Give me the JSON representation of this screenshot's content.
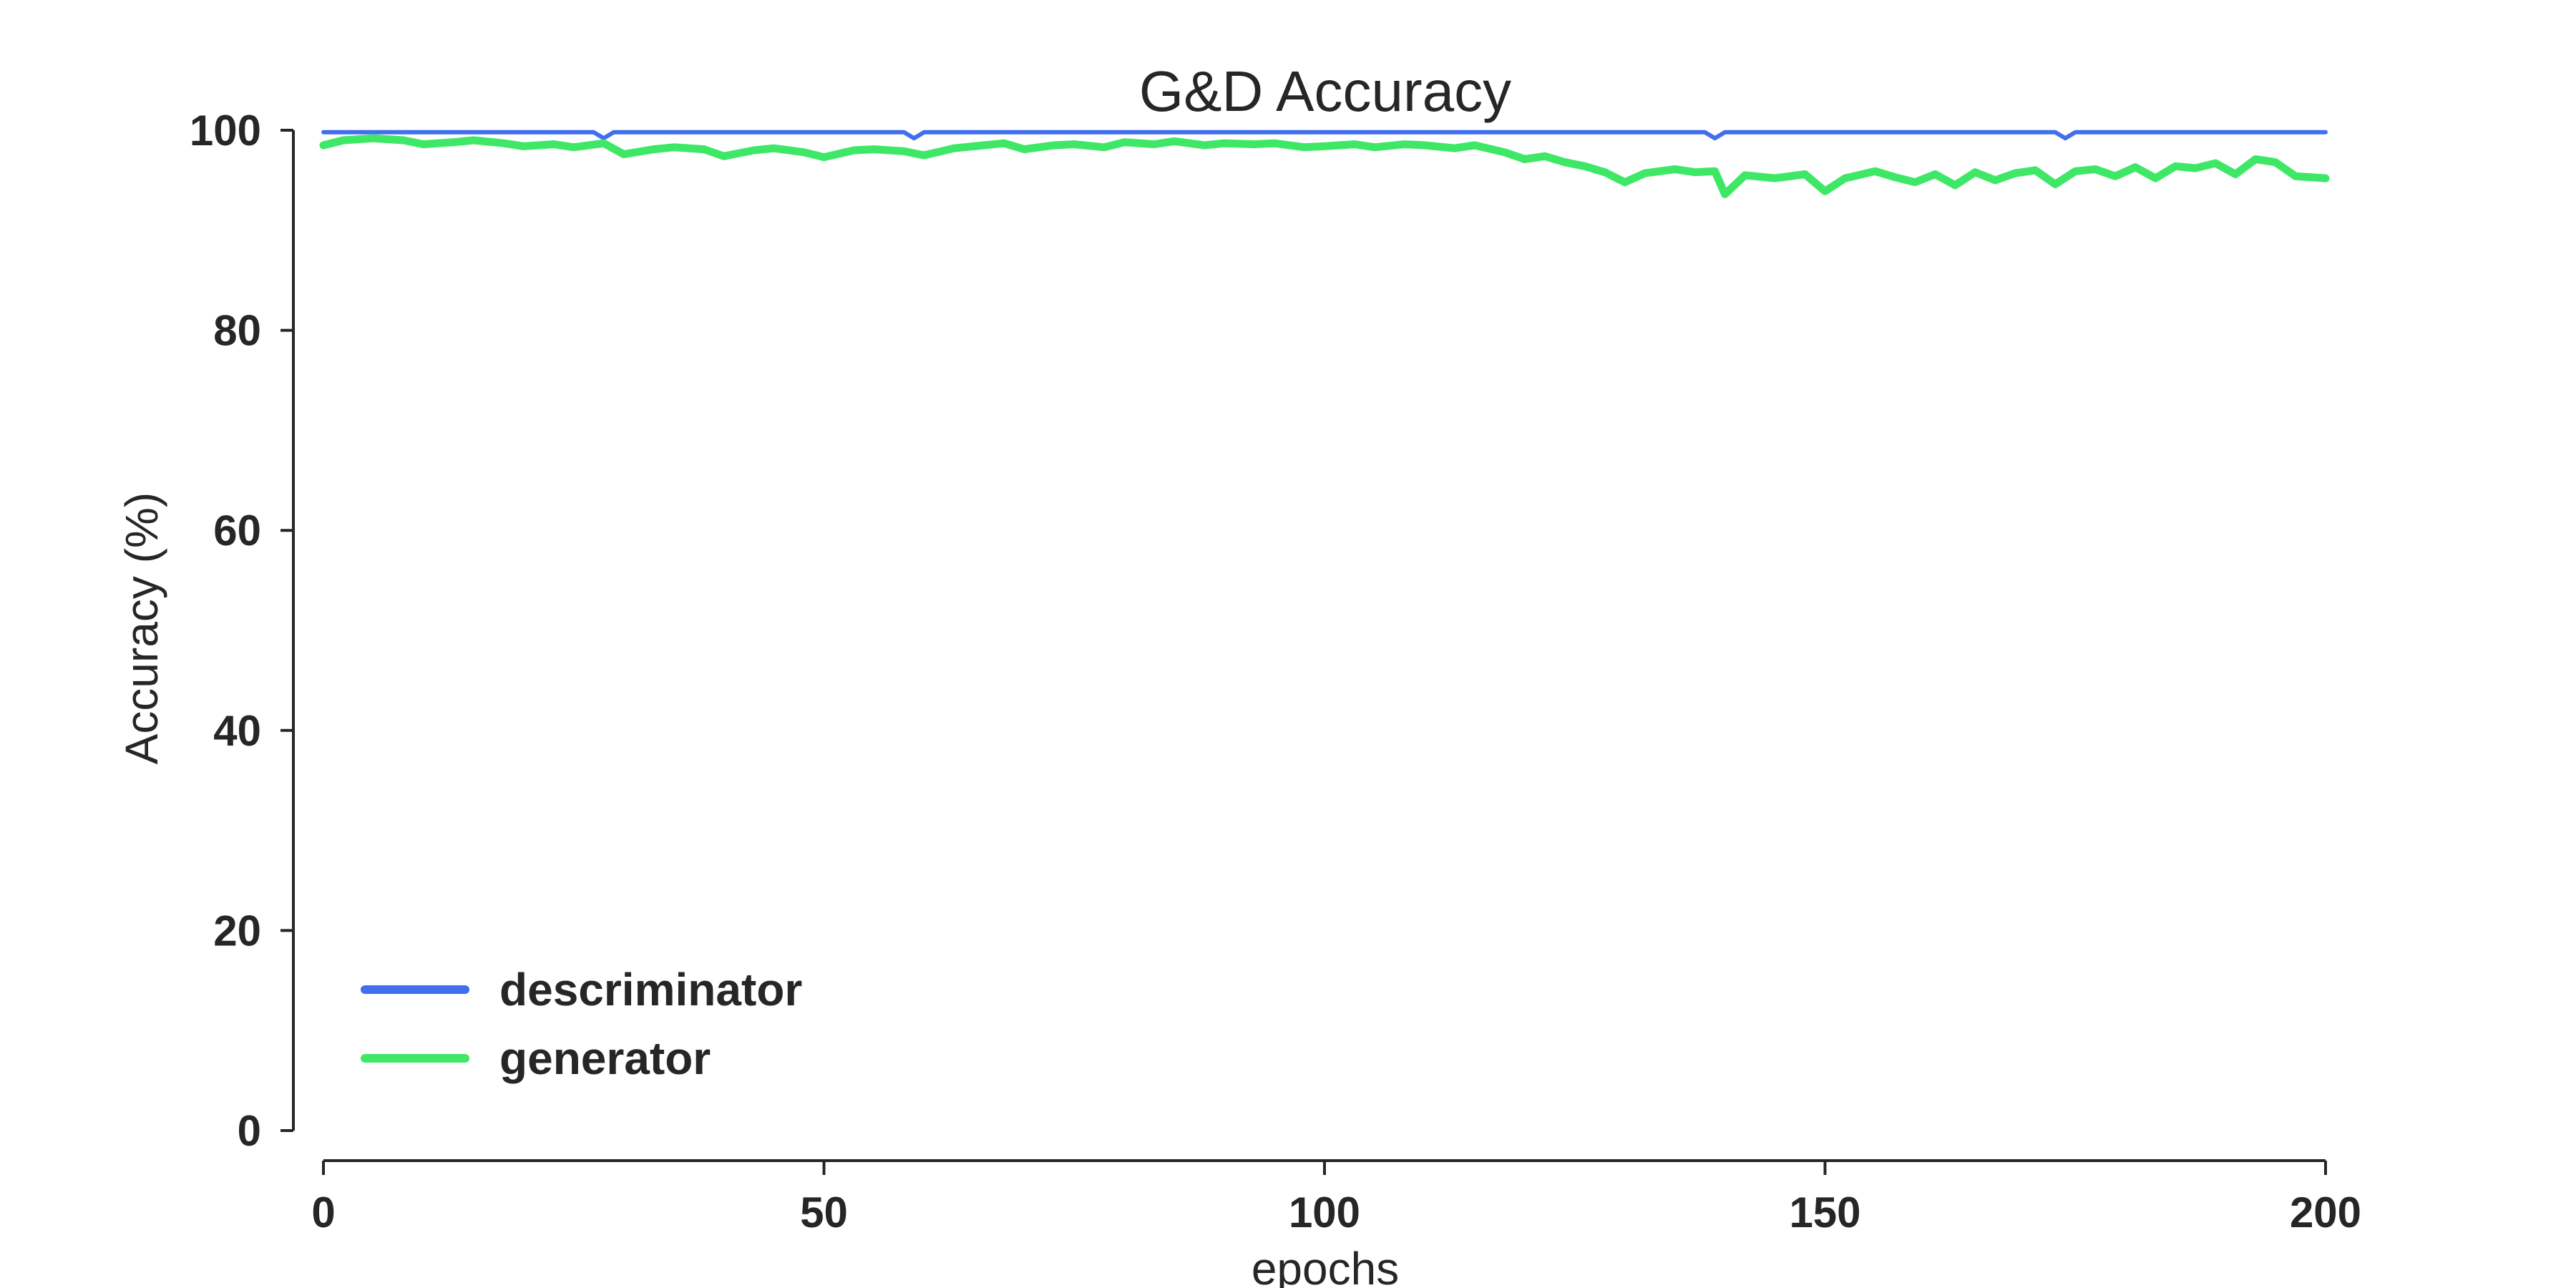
{
  "chart_data": {
    "type": "line",
    "title": "G&D Accuracy",
    "xlabel": "epochs",
    "ylabel": "Accuracy (%)",
    "xlim": [
      0,
      200
    ],
    "ylim": [
      0,
      100
    ],
    "xticks": [
      "0",
      "50",
      "100",
      "150",
      "200"
    ],
    "yticks": [
      "0",
      "20",
      "40",
      "60",
      "80",
      "100"
    ],
    "grid": false,
    "legend_position": "lower-left",
    "series": [
      {
        "name": "descriminator",
        "color": "#3f6ff0",
        "x": [
          0,
          27,
          28,
          29,
          58,
          59,
          60,
          138,
          139,
          140,
          173,
          174,
          175,
          200
        ],
        "y": [
          99.8,
          99.8,
          99.2,
          99.8,
          99.8,
          99.2,
          99.8,
          99.8,
          99.2,
          99.8,
          99.8,
          99.2,
          99.8,
          99.8
        ]
      },
      {
        "name": "generator",
        "color": "#3ee866",
        "x": [
          0,
          2,
          5,
          8,
          10,
          13,
          15,
          18,
          20,
          23,
          25,
          28,
          30,
          33,
          35,
          38,
          40,
          43,
          45,
          48,
          50,
          53,
          55,
          58,
          60,
          63,
          65,
          68,
          70,
          73,
          75,
          78,
          80,
          83,
          85,
          88,
          90,
          93,
          95,
          98,
          100,
          103,
          105,
          108,
          110,
          113,
          115,
          118,
          120,
          122,
          124,
          126,
          128,
          130,
          132,
          135,
          137,
          139,
          140,
          142,
          145,
          148,
          150,
          152,
          155,
          157,
          159,
          161,
          163,
          165,
          167,
          169,
          171,
          173,
          175,
          177,
          179,
          181,
          183,
          185,
          187,
          189,
          191,
          193,
          195,
          197,
          200
        ],
        "y": [
          98.5,
          99.0,
          99.2,
          99.0,
          98.6,
          98.8,
          99.0,
          98.7,
          98.4,
          98.6,
          98.3,
          98.7,
          97.6,
          98.1,
          98.3,
          98.1,
          97.4,
          98.0,
          98.2,
          97.8,
          97.3,
          98.0,
          98.1,
          97.9,
          97.5,
          98.2,
          98.4,
          98.7,
          98.1,
          98.5,
          98.6,
          98.3,
          98.8,
          98.6,
          98.9,
          98.5,
          98.7,
          98.6,
          98.7,
          98.3,
          98.4,
          98.6,
          98.3,
          98.6,
          98.5,
          98.2,
          98.5,
          97.8,
          97.1,
          97.4,
          96.8,
          96.4,
          95.8,
          94.8,
          95.7,
          96.1,
          95.8,
          95.9,
          93.6,
          95.5,
          95.2,
          95.6,
          93.9,
          95.2,
          95.9,
          95.3,
          94.8,
          95.6,
          94.5,
          95.8,
          95.0,
          95.7,
          96.0,
          94.6,
          95.9,
          96.1,
          95.4,
          96.3,
          95.2,
          96.4,
          96.2,
          96.7,
          95.6,
          97.1,
          96.8,
          95.4,
          95.2
        ]
      }
    ]
  }
}
